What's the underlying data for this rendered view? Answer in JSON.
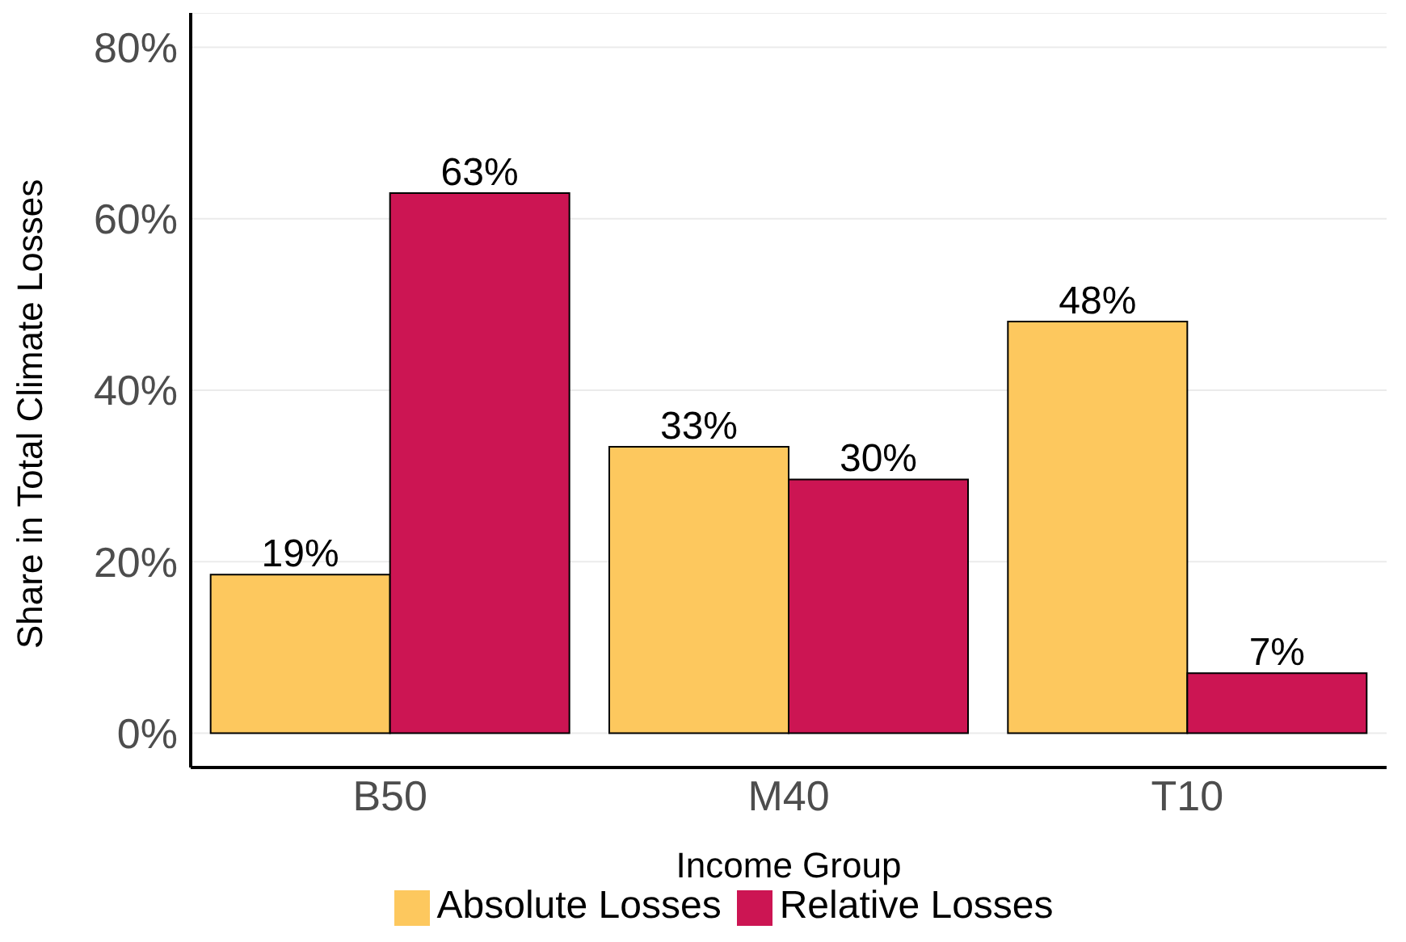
{
  "chart_data": {
    "type": "bar",
    "xlabel": "Income Group",
    "ylabel": "Share in Total Climate Losses",
    "categories": [
      "B50",
      "M40",
      "T10"
    ],
    "series": [
      {
        "name": "Absolute Losses",
        "color": "#fdc85e",
        "values": [
          18.5,
          33.4,
          48
        ],
        "value_labels": [
          "19%",
          "33%",
          "48%"
        ]
      },
      {
        "name": "Relative Losses",
        "color": "#cc1553",
        "values": [
          63,
          29.6,
          7
        ],
        "value_labels": [
          "63%",
          "30%",
          "7%"
        ]
      }
    ],
    "ylim": [
      -4,
      84
    ],
    "yticks": [
      {
        "value": 0,
        "label": "0%"
      },
      {
        "value": 20,
        "label": "20%"
      },
      {
        "value": 40,
        "label": "40%"
      },
      {
        "value": 60,
        "label": "60%"
      },
      {
        "value": 80,
        "label": "80%"
      }
    ],
    "grid": "y",
    "legend": "bottom"
  }
}
